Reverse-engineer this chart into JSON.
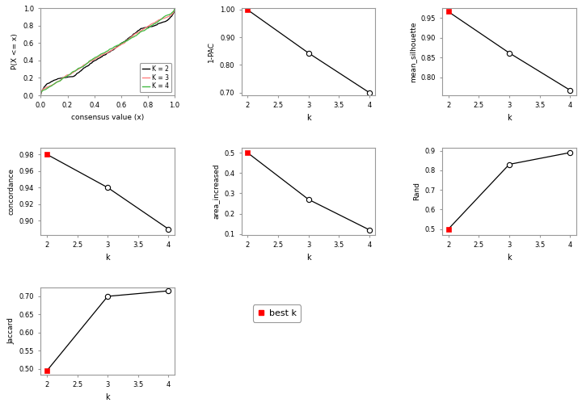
{
  "ecdf": {
    "k2": {
      "color": "#000000"
    },
    "k3": {
      "color": "#FF8080"
    },
    "k4": {
      "color": "#44BB44"
    }
  },
  "pac": {
    "k": [
      2,
      3,
      4
    ],
    "v": [
      0.999,
      0.843,
      0.7
    ],
    "ylim": [
      0.69,
      1.005
    ],
    "yticks": [
      0.7,
      0.8,
      0.9,
      1.0
    ],
    "ytick_labels": [
      "0.70",
      "0.80",
      "0.90",
      "1.00"
    ],
    "ylabel": "1-PAC",
    "best_k": 2
  },
  "mean_sil": {
    "k": [
      2,
      3,
      4
    ],
    "v": [
      0.966,
      0.862,
      0.768
    ],
    "ylim": [
      0.755,
      0.975
    ],
    "yticks": [
      0.8,
      0.85,
      0.9,
      0.95
    ],
    "ytick_labels": [
      "0.80",
      "0.85",
      "0.90",
      "0.95"
    ],
    "ylabel": "mean_silhouette",
    "best_k": 2
  },
  "concordance": {
    "k": [
      2,
      3,
      4
    ],
    "v": [
      0.98,
      0.94,
      0.89
    ],
    "ylim": [
      0.883,
      0.988
    ],
    "yticks": [
      0.9,
      0.92,
      0.94,
      0.96,
      0.98
    ],
    "ytick_labels": [
      "0.90",
      "0.92",
      "0.94",
      "0.96",
      "0.98"
    ],
    "ylabel": "concordance",
    "best_k": 2
  },
  "area_increased": {
    "k": [
      2,
      3,
      4
    ],
    "v": [
      0.5,
      0.27,
      0.12
    ],
    "ylim": [
      0.095,
      0.525
    ],
    "yticks": [
      0.1,
      0.2,
      0.3,
      0.4,
      0.5
    ],
    "ytick_labels": [
      "0.1",
      "0.2",
      "0.3",
      "0.4",
      "0.5"
    ],
    "ylabel": "area_increased",
    "best_k": 2
  },
  "rand": {
    "k": [
      2,
      3,
      4
    ],
    "v": [
      0.5,
      0.83,
      0.89
    ],
    "ylim": [
      0.47,
      0.915
    ],
    "yticks": [
      0.5,
      0.6,
      0.7,
      0.8,
      0.9
    ],
    "ytick_labels": [
      "0.5",
      "0.6",
      "0.7",
      "0.8",
      "0.9"
    ],
    "ylabel": "Rand",
    "best_k": 2
  },
  "jaccard": {
    "k": [
      2,
      3,
      4
    ],
    "v": [
      0.495,
      0.7,
      0.715
    ],
    "ylim": [
      0.485,
      0.725
    ],
    "yticks": [
      0.5,
      0.55,
      0.6,
      0.65,
      0.7
    ],
    "ytick_labels": [
      "0.50",
      "0.55",
      "0.60",
      "0.65",
      "0.70"
    ],
    "ylabel": "Jaccard",
    "best_k": 2
  },
  "best_k_color": "#FF0000",
  "open_color": "#000000",
  "line_color": "#000000",
  "bg_color": "#FFFFFF"
}
